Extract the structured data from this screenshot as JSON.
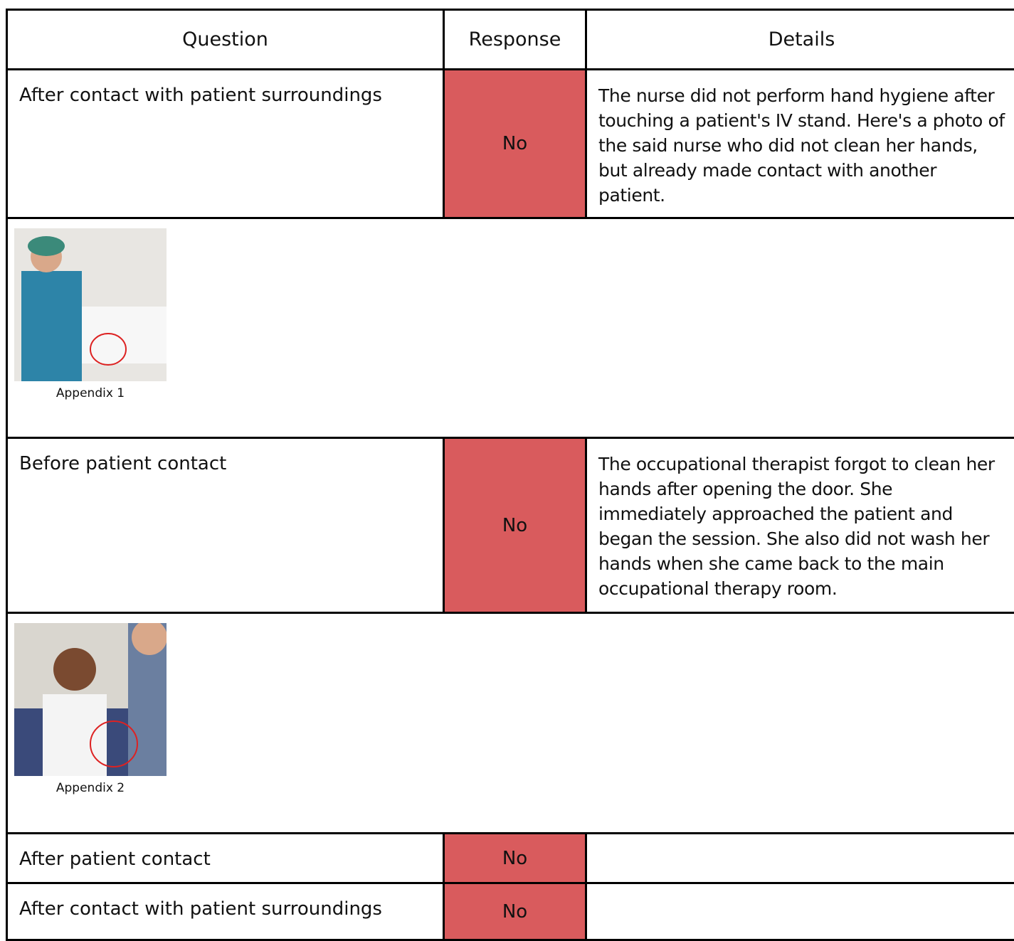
{
  "table": {
    "header": [
      "Question",
      "Response",
      "Details"
    ],
    "rows": [
      [
        "After contact with patient surroundings",
        "No",
        "The nurse did not perform hand hygiene after touching a patient's IV stand. Here's a photo of the said nurse who did not clean her hands, but already made contact with another patient."
      ],
      [
        "Appendix 1"
      ],
      [
        "Before patient contact",
        "No",
        "The occupational therapist forgot to clean her hands after opening the door. She immediately approached the patient and began the session. She also did not wash her hands when she came back to the main occupational therapy room."
      ],
      [
        "Appendix 2"
      ],
      [
        "After patient contact",
        "No"
      ],
      [
        "After contact with patient surroundings",
        "No"
      ]
    ]
  }
}
